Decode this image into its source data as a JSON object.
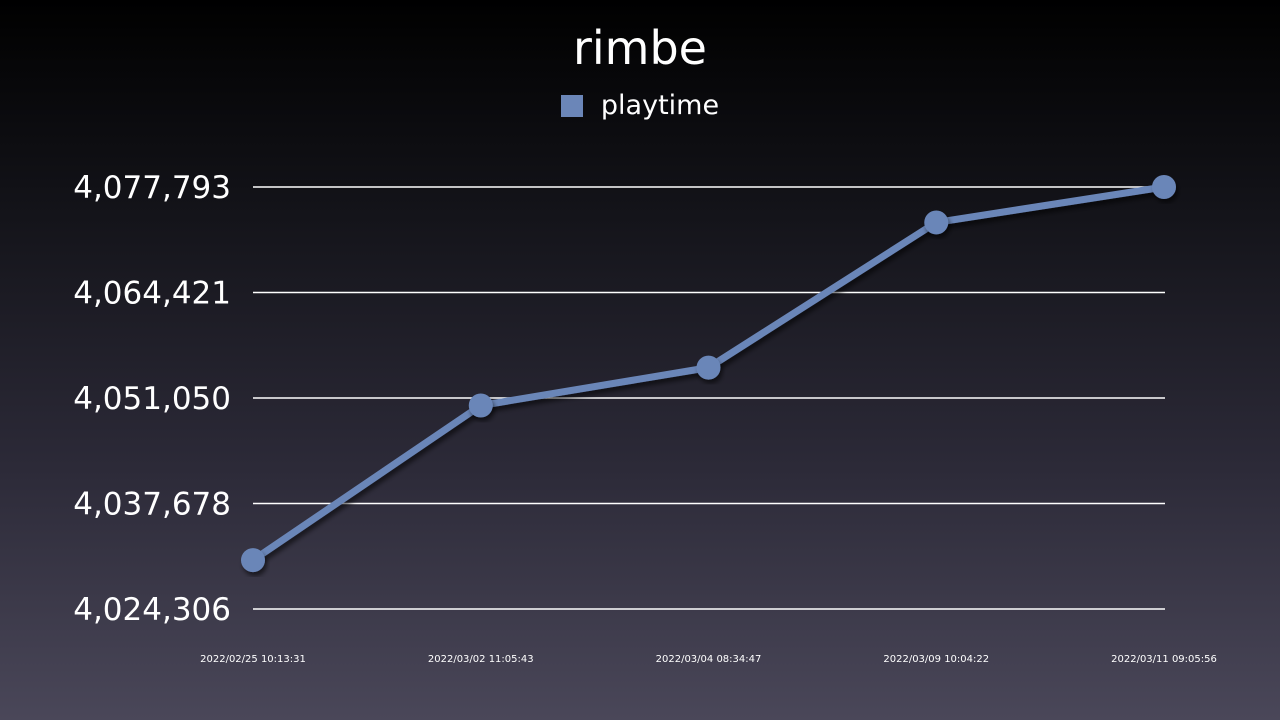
{
  "chart_data": {
    "type": "line",
    "title": "rimbe",
    "xlabel": "",
    "ylabel": "",
    "legend_position": "top-center",
    "grid": true,
    "ylim": [
      4024306,
      4077793
    ],
    "y_ticks": [
      "4,024,306",
      "4,037,678",
      "4,051,050",
      "4,064,421",
      "4,077,793"
    ],
    "y_tick_values": [
      4024306,
      4037678,
      4051050,
      4064421,
      4077793
    ],
    "x": [
      "2022/02/25 10:13:31",
      "2022/03/02 11:05:43",
      "2022/03/04 08:34:47",
      "2022/03/09 10:04:22",
      "2022/03/11 09:05:56"
    ],
    "series": [
      {
        "name": "playtime",
        "color": "#6b86b8",
        "values": [
          4030500,
          4050100,
          4054900,
          4073300,
          4077793
        ]
      }
    ]
  }
}
